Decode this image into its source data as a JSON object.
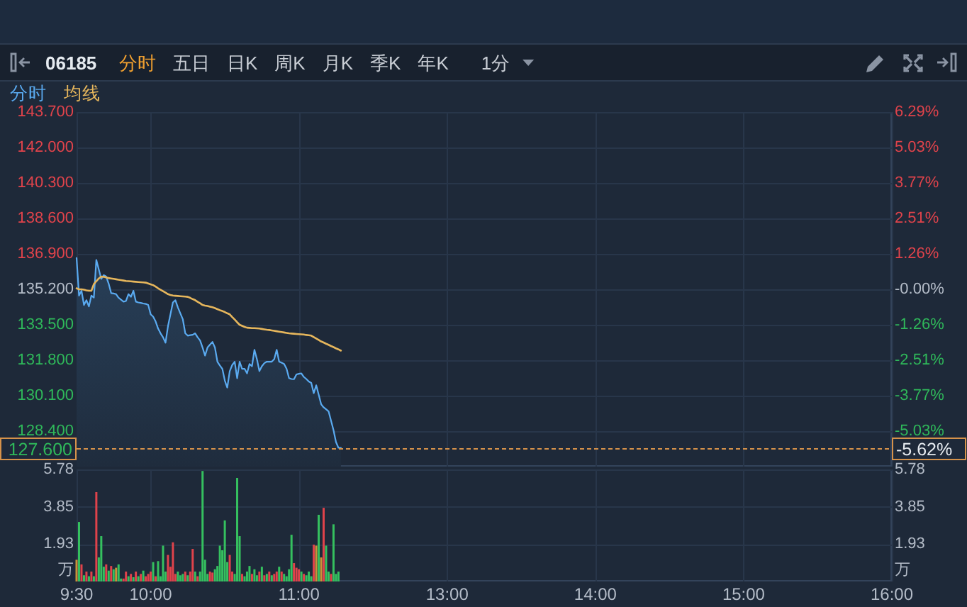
{
  "chart_data": [
    {
      "type": "line",
      "title": "06185",
      "annotations": [
        "分时",
        "五日",
        "日K",
        "周K",
        "月K",
        "季K",
        "年K",
        "1分",
        "-5.62%"
      ],
      "categories": [
        null,
        null,
        null,
        null,
        null,
        null,
        null,
        null,
        null,
        null,
        null,
        null,
        null,
        null,
        null,
        null,
        null,
        null,
        null,
        null,
        null,
        null,
        null,
        null,
        null,
        null,
        null,
        null,
        null,
        null,
        null,
        null,
        null,
        null,
        null,
        null,
        null,
        null,
        null,
        null,
        null,
        null,
        null,
        null,
        null,
        null,
        null,
        null,
        null,
        null,
        null,
        null,
        null,
        null,
        null,
        null,
        null,
        null,
        null,
        null,
        null,
        null,
        null,
        null,
        null,
        null,
        null,
        null,
        null,
        null,
        null,
        null,
        null,
        null,
        null,
        null,
        null,
        null,
        null,
        null,
        null,
        null,
        null,
        null,
        null,
        null,
        null,
        null,
        null,
        null,
        null,
        null,
        null,
        null,
        null,
        null,
        null,
        null,
        null,
        null,
        null,
        null,
        null,
        null,
        null,
        null,
        null,
        null,
        null,
        null,
        null,
        null,
        null,
        null,
        null,
        null,
        null,
        null,
        null,
        null,
        null,
        null,
        null,
        null,
        null,
        null,
        null,
        null,
        null,
        null,
        null,
        null,
        null,
        null,
        null,
        null,
        null,
        null,
        null,
        null,
        null,
        null,
        null,
        null,
        null,
        null,
        null,
        null,
        null,
        null,
        null,
        null,
        null,
        null,
        null,
        null,
        null,
        null,
        null,
        null,
        null,
        null,
        null,
        null,
        null,
        null,
        null,
        null,
        null,
        null,
        null,
        null,
        null,
        null,
        null,
        null,
        null,
        null,
        null,
        null,
        null,
        null,
        null,
        null,
        null,
        null,
        null,
        null,
        null,
        null,
        null,
        null,
        null,
        null,
        null,
        null,
        null,
        null,
        null,
        null,
        null,
        null,
        null,
        null,
        null,
        null,
        null,
        null,
        null,
        null,
        null,
        null,
        null,
        null,
        null,
        null,
        null,
        null,
        null,
        null,
        null,
        null,
        null,
        null,
        null,
        null,
        null,
        null,
        null,
        null,
        null,
        null,
        null,
        null,
        null,
        null,
        null,
        null,
        null,
        null,
        null,
        null,
        null,
        null,
        null,
        null,
        null,
        null,
        null,
        null,
        null,
        null,
        null,
        null,
        null,
        null,
        null,
        null,
        null,
        null,
        null,
        null,
        null,
        null,
        null,
        null,
        null,
        null,
        null,
        null,
        null,
        null,
        null,
        null,
        null,
        null,
        null,
        null,
        null,
        null,
        null,
        null,
        null,
        null,
        null,
        null,
        null,
        null,
        null,
        null,
        null,
        null,
        null,
        null,
        null,
        null,
        null,
        null,
        null,
        null,
        null,
        null,
        null,
        null,
        null,
        null,
        null,
        null,
        null,
        null,
        null,
        null,
        null,
        null,
        null,
        null,
        null,
        null,
        null,
        null,
        null,
        null,
        null,
        null,
        null,
        null,
        null,
        null,
        null,
        null,
        null
      ],
      "series": [
        {
          "name": "分时",
          "type": "area",
          "color": "#5aaaf0",
          "values": [
            136.7,
            134.9,
            135.13,
            134.45,
            134.68,
            134.38,
            134.9,
            134.8,
            136.61,
            136.15,
            135.7,
            135.88,
            135.81,
            135.47,
            135.02,
            135.0,
            134.97,
            134.8,
            134.7,
            134.61,
            134.64,
            134.97,
            134.84,
            135.13,
            134.61,
            134.57,
            134.55,
            134.52,
            134.5,
            134.45,
            134.0,
            133.89,
            133.66,
            133.32,
            133.09,
            132.9,
            132.64,
            133.43,
            134.0,
            134.57,
            134.68,
            134.34,
            134.05,
            133.77,
            133.09,
            132.98,
            133.0,
            133.02,
            133.09,
            132.9,
            132.75,
            132.41,
            132.02,
            132.41,
            132.55,
            132.68,
            132.41,
            131.73,
            131.55,
            131.39,
            130.83,
            130.49,
            131.28,
            131.57,
            131.73,
            130.94,
            131.73,
            131.39,
            131.39,
            131.17,
            131.62,
            131.51,
            132.3,
            131.85,
            131.28,
            131.51,
            131.66,
            131.73,
            131.73,
            131.73,
            131.85,
            132.3,
            131.73,
            131.68,
            131.62,
            131.39,
            130.94,
            130.9,
            130.89,
            131.12,
            131.15,
            131.17,
            131.0,
            130.9,
            130.78,
            130.71,
            130.22,
            130.6,
            130.15,
            129.69,
            129.54,
            129.45,
            129.35,
            128.9,
            128.45,
            127.88,
            127.6,
            127.6,
            null,
            null,
            null,
            null,
            null,
            null,
            null,
            null,
            null,
            null,
            null,
            null,
            null,
            null,
            null,
            null,
            null,
            null,
            null,
            null,
            null,
            null,
            null,
            null,
            null,
            null,
            null,
            null,
            null,
            null,
            null,
            null,
            null,
            null,
            null,
            null,
            null,
            null,
            null,
            null,
            null,
            null,
            null,
            null,
            null,
            null,
            null,
            null,
            null,
            null,
            null,
            null,
            null,
            null,
            null,
            null,
            null,
            null,
            null,
            null,
            null,
            null,
            null,
            null,
            null,
            null,
            null,
            null,
            null,
            null,
            null,
            null,
            null,
            null,
            null,
            null,
            null,
            null,
            null,
            null,
            null,
            null,
            null,
            null,
            null,
            null,
            null,
            null,
            null,
            null,
            null,
            null,
            null,
            null,
            null,
            null,
            null,
            null,
            null,
            null,
            null,
            null,
            null,
            null,
            null,
            null,
            null,
            null,
            null,
            null,
            null,
            null,
            null,
            null,
            null,
            null,
            null,
            null,
            null,
            null,
            null,
            null,
            null,
            null,
            null,
            null,
            null,
            null,
            null,
            null,
            null,
            null,
            null,
            null,
            null,
            null,
            null,
            null,
            null,
            null,
            null,
            null,
            null,
            null,
            null,
            null,
            null,
            null,
            null,
            null,
            null,
            null,
            null,
            null,
            null,
            null,
            null,
            null,
            null,
            null,
            null,
            null,
            null,
            null,
            null,
            null,
            null,
            null,
            null,
            null,
            null,
            null,
            null,
            null,
            null,
            null,
            null,
            null,
            null,
            null,
            null,
            null,
            null,
            null,
            null,
            null,
            null,
            null,
            null,
            null,
            null,
            null,
            null,
            null,
            null,
            null,
            null,
            null,
            null,
            null,
            null,
            null,
            null,
            null,
            null,
            null,
            null,
            null,
            null,
            null,
            null,
            null,
            null,
            null,
            null,
            null,
            null,
            null,
            null,
            null,
            null,
            null,
            null
          ]
        },
        {
          "name": "均线",
          "type": "line",
          "color": "#e6b65c",
          "values": [
            135.25,
            135.2,
            135.2,
            135.18,
            135.15,
            135.13,
            135.13,
            135.45,
            135.59,
            135.72,
            135.81,
            135.8,
            135.77,
            135.74,
            135.72,
            135.7,
            135.68,
            135.66,
            135.64,
            135.62,
            135.6,
            135.59,
            135.58,
            135.57,
            135.56,
            135.55,
            135.54,
            135.53,
            135.52,
            135.48,
            135.44,
            135.4,
            135.33,
            135.25,
            135.18,
            135.11,
            135.04,
            134.97,
            134.93,
            134.9,
            134.89,
            134.88,
            134.87,
            134.86,
            134.85,
            134.84,
            134.79,
            134.73,
            134.68,
            134.6,
            134.53,
            134.45,
            134.42,
            134.4,
            134.37,
            134.34,
            134.3,
            134.25,
            134.2,
            134.16,
            134.11,
            134.05,
            134.0,
            133.87,
            133.75,
            133.62,
            133.5,
            133.45,
            133.4,
            133.36,
            133.35,
            133.34,
            133.34,
            133.33,
            133.32,
            133.3,
            133.28,
            133.26,
            133.25,
            133.23,
            133.21,
            133.19,
            133.17,
            133.15,
            133.13,
            133.11,
            133.09,
            133.08,
            133.07,
            133.06,
            133.05,
            133.04,
            133.03,
            133.01,
            133.0,
            132.98,
            132.91,
            132.84,
            132.77,
            132.7,
            132.65,
            132.59,
            132.54,
            132.48,
            132.43,
            132.37,
            132.32,
            132.26,
            null,
            null,
            null,
            null,
            null,
            null,
            null,
            null,
            null,
            null,
            null,
            null,
            null,
            null,
            null,
            null,
            null,
            null,
            null,
            null,
            null,
            null,
            null,
            null,
            null,
            null,
            null,
            null,
            null,
            null,
            null,
            null,
            null,
            null,
            null,
            null,
            null,
            null,
            null,
            null,
            null,
            null,
            null,
            null,
            null,
            null,
            null,
            null,
            null,
            null,
            null,
            null,
            null,
            null,
            null,
            null,
            null,
            null,
            null,
            null,
            null,
            null,
            null,
            null,
            null,
            null,
            null,
            null,
            null,
            null,
            null,
            null,
            null,
            null,
            null,
            null,
            null,
            null,
            null,
            null,
            null,
            null,
            null,
            null,
            null,
            null,
            null,
            null,
            null,
            null,
            null,
            null,
            null,
            null,
            null,
            null,
            null,
            null,
            null,
            null,
            null,
            null,
            null,
            null,
            null,
            null,
            null,
            null,
            null,
            null,
            null,
            null,
            null,
            null,
            null,
            null,
            null,
            null,
            null,
            null,
            null,
            null,
            null,
            null,
            null,
            null,
            null,
            null,
            null,
            null,
            null,
            null,
            null,
            null,
            null,
            null,
            null,
            null,
            null,
            null,
            null,
            null,
            null,
            null,
            null,
            null,
            null,
            null,
            null,
            null,
            null,
            null,
            null,
            null,
            null,
            null,
            null,
            null,
            null,
            null,
            null,
            null,
            null,
            null,
            null,
            null,
            null,
            null,
            null,
            null,
            null,
            null,
            null,
            null,
            null,
            null,
            null,
            null,
            null,
            null,
            null,
            null,
            null,
            null,
            null,
            null,
            null,
            null,
            null,
            null,
            null,
            null,
            null,
            null,
            null,
            null,
            null,
            null,
            null,
            null,
            null,
            null,
            null,
            null,
            null,
            null,
            null,
            null,
            null,
            null,
            null,
            null,
            null,
            null,
            null,
            null,
            null,
            null,
            null,
            null,
            null,
            null,
            null
          ]
        }
      ],
      "ylim": [
        126.7,
        143.7
      ],
      "yticks": [
        {
          "value": 128.4,
          "label": "128.400"
        },
        {
          "value": 130.1,
          "label": "130.100"
        },
        {
          "value": 131.8,
          "label": "131.800"
        },
        {
          "value": 133.5,
          "label": "133.500"
        },
        {
          "value": 135.2,
          "label": "135.200"
        },
        {
          "value": 136.9,
          "label": "136.900"
        },
        {
          "value": 138.6,
          "label": "138.600"
        },
        {
          "value": 140.3,
          "label": "140.300"
        },
        {
          "value": 142.0,
          "label": "142.000"
        },
        {
          "value": 143.7,
          "label": "143.700"
        }
      ],
      "y2lim": [
        -6.29,
        6.29
      ],
      "y2ticks": [
        {
          "value": -5.03,
          "label": "-5.03%"
        },
        {
          "value": -3.77,
          "label": "-3.77%"
        },
        {
          "value": -2.51,
          "label": "-2.51%"
        },
        {
          "value": -1.26,
          "label": "-1.26%"
        },
        {
          "value": 0,
          "label": "-0.00%"
        },
        {
          "value": 1.26,
          "label": "1.26%"
        },
        {
          "value": 2.51,
          "label": "2.51%"
        },
        {
          "value": 3.77,
          "label": "3.77%"
        },
        {
          "value": 5.03,
          "label": "5.03%"
        },
        {
          "value": 6.29,
          "label": "6.29%"
        }
      ],
      "ref_lines": [
        {
          "axis": "y",
          "value": 127.6,
          "label": "127.600",
          "color": "#d6924a",
          "line_style": "dashed"
        }
      ],
      "grid": true,
      "legend": "top left",
      "tick_labels": "y"
    },
    {
      "type": "bar",
      "categories": [
        "9:30",
        null,
        null,
        null,
        null,
        null,
        null,
        null,
        null,
        null,
        null,
        null,
        null,
        null,
        null,
        null,
        null,
        null,
        null,
        null,
        null,
        null,
        null,
        null,
        null,
        null,
        null,
        null,
        null,
        null,
        "10:00",
        null,
        null,
        null,
        null,
        null,
        null,
        null,
        null,
        null,
        null,
        null,
        null,
        null,
        null,
        null,
        null,
        null,
        null,
        null,
        null,
        null,
        null,
        null,
        null,
        null,
        null,
        null,
        null,
        null,
        null,
        null,
        null,
        null,
        null,
        null,
        null,
        null,
        null,
        null,
        null,
        null,
        null,
        null,
        null,
        null,
        null,
        null,
        null,
        null,
        null,
        null,
        null,
        null,
        null,
        null,
        null,
        null,
        null,
        null,
        "11:00",
        null,
        null,
        null,
        null,
        null,
        null,
        null,
        null,
        null,
        null,
        null,
        null,
        null,
        null,
        null,
        null,
        null,
        null,
        null,
        null,
        null,
        null,
        null,
        null,
        null,
        null,
        null,
        null,
        null,
        null,
        null,
        null,
        null,
        null,
        null,
        null,
        null,
        null,
        null,
        null,
        null,
        null,
        null,
        null,
        null,
        null,
        null,
        null,
        null,
        null,
        null,
        null,
        null,
        null,
        null,
        null,
        null,
        null,
        null,
        "13:00",
        null,
        null,
        null,
        null,
        null,
        null,
        null,
        null,
        null,
        null,
        null,
        null,
        null,
        null,
        null,
        null,
        null,
        null,
        null,
        null,
        null,
        null,
        null,
        null,
        null,
        null,
        null,
        null,
        null,
        null,
        null,
        null,
        null,
        null,
        null,
        null,
        null,
        null,
        null,
        null,
        null,
        null,
        null,
        null,
        null,
        null,
        null,
        null,
        null,
        null,
        null,
        null,
        null,
        null,
        null,
        null,
        null,
        null,
        null,
        "14:00",
        null,
        null,
        null,
        null,
        null,
        null,
        null,
        null,
        null,
        null,
        null,
        null,
        null,
        null,
        null,
        null,
        null,
        null,
        null,
        null,
        null,
        null,
        null,
        null,
        null,
        null,
        null,
        null,
        null,
        null,
        null,
        null,
        null,
        null,
        null,
        null,
        null,
        null,
        null,
        null,
        null,
        null,
        null,
        null,
        null,
        null,
        null,
        null,
        null,
        null,
        null,
        null,
        null,
        null,
        null,
        null,
        null,
        null,
        null,
        "15:00",
        null,
        null,
        null,
        null,
        null,
        null,
        null,
        null,
        null,
        null,
        null,
        null,
        null,
        null,
        null,
        null,
        null,
        null,
        null,
        null,
        null,
        null,
        null,
        null,
        null,
        null,
        null,
        null,
        null,
        null,
        null,
        null,
        null,
        null,
        null,
        null,
        null,
        null,
        null,
        null,
        null,
        null,
        null,
        null,
        null,
        null,
        null,
        null,
        null,
        null,
        null,
        null,
        null,
        null,
        null,
        null,
        null,
        null,
        null,
        "16:00"
      ],
      "values": [
        1.12,
        3.07,
        0.88,
        0.32,
        0.51,
        0.27,
        0.51,
        0.27,
        4.61,
        1.24,
        2.34,
        0.76,
        0.88,
        0.56,
        0.8,
        0.63,
        0.71,
        0.88,
        0.15,
        0.15,
        0.51,
        0.27,
        0.39,
        0.22,
        0.51,
        0.27,
        0.39,
        0.56,
        0.27,
        0.39,
        0.51,
        1.0,
        0.27,
        1.05,
        0.27,
        1.85,
        0.51,
        1.37,
        0.76,
        2.02,
        0.39,
        0.51,
        0.32,
        0.39,
        0.51,
        0.32,
        0.51,
        1.68,
        0.51,
        0.27,
        0.51,
        5.7,
        1.12,
        0.39,
        0.51,
        0.46,
        0.63,
        0.8,
        1.85,
        1.61,
        3.15,
        1.0,
        1.37,
        0.51,
        0.39,
        5.34,
        2.34,
        0.39,
        0.27,
        0.51,
        0.8,
        0.39,
        0.63,
        0.32,
        0.51,
        0.76,
        0.32,
        0.39,
        0.51,
        0.32,
        0.39,
        0.51,
        0.76,
        0.51,
        0.39,
        0.27,
        0.63,
        2.41,
        0.95,
        0.71,
        0.63,
        0.51,
        0.39,
        0.32,
        0.51,
        0.27,
        1.9,
        1.85,
        3.44,
        1.24,
        3.8,
        1.85,
        0.51,
        0.39,
        2.95,
        0.39,
        0.51,
        null,
        null,
        null,
        null,
        null,
        null,
        null,
        null,
        null,
        null,
        null,
        null,
        null,
        null,
        null,
        null,
        null,
        null,
        null,
        null,
        null,
        null,
        null,
        null,
        null,
        null,
        null,
        null,
        null,
        null,
        null,
        null,
        null,
        null,
        null,
        null,
        null,
        null,
        null,
        null,
        null,
        null,
        null,
        null,
        null,
        null,
        null,
        null,
        null,
        null,
        null,
        null,
        null,
        null,
        null,
        null,
        null,
        null,
        null,
        null,
        null,
        null,
        null,
        null,
        null,
        null,
        null,
        null,
        null,
        null,
        null,
        null,
        null,
        null,
        null,
        null,
        null,
        null,
        null,
        null,
        null,
        null,
        null,
        null,
        null,
        null,
        null,
        null,
        null,
        null,
        null,
        null,
        null,
        null,
        null,
        null,
        null,
        null,
        null,
        null,
        null,
        null,
        null,
        null,
        null,
        null,
        null,
        null,
        null,
        null,
        null,
        null,
        null,
        null,
        null,
        null,
        null,
        null,
        null,
        null,
        null,
        null,
        null,
        null,
        null,
        null,
        null,
        null,
        null,
        null,
        null,
        null,
        null,
        null,
        null,
        null,
        null,
        null,
        null,
        null,
        null,
        null,
        null,
        null,
        null,
        null,
        null,
        null,
        null,
        null,
        null,
        null,
        null,
        null,
        null,
        null,
        null,
        null,
        null,
        null,
        null,
        null,
        null,
        null,
        null,
        null,
        null,
        null,
        null,
        null,
        null,
        null,
        null,
        null,
        null,
        null,
        null,
        null,
        null,
        null,
        null,
        null,
        null,
        null,
        null,
        null,
        null,
        null,
        null,
        null,
        null,
        null,
        null,
        null,
        null,
        null,
        null,
        null,
        null,
        null,
        null,
        null,
        null,
        null,
        null,
        null,
        null,
        null,
        null,
        null,
        null,
        null,
        null,
        null,
        null,
        null,
        null,
        null,
        null,
        null,
        null,
        null,
        null,
        null
      ],
      "colors": [
        "#c9923a",
        "#35c05f",
        "#e0434b",
        "#35c05f",
        "#e0434b",
        "#35c05f",
        "#e0434b",
        "#35c05f",
        "#e0434b",
        "#35c05f",
        "#35c05f",
        "#35c05f",
        "#e0434b",
        "#35c05f",
        "#e0434b",
        "#35c05f",
        "#c9923a",
        "#35c05f",
        "#35c05f",
        "#e0434b",
        "#e0434b",
        "#35c05f",
        "#e0434b",
        "#35c05f",
        "#e0434b",
        "#35c05f",
        "#e0434b",
        "#35c05f",
        "#e0434b",
        "#e0434b",
        "#e0434b",
        "#35c05f",
        "#e0434b",
        "#35c05f",
        "#35c05f",
        "#35c05f",
        "#35c05f",
        "#e0434b",
        "#e0434b",
        "#e0434b",
        "#e0434b",
        "#35c05f",
        "#35c05f",
        "#35c05f",
        "#e0434b",
        "#35c05f",
        "#e0434b",
        "#e0434b",
        "#35c05f",
        "#e0434b",
        "#35c05f",
        "#35c05f",
        "#35c05f",
        "#35c05f",
        "#e0434b",
        "#e0434b",
        "#35c05f",
        "#35c05f",
        "#35c05f",
        "#35c05f",
        "#35c05f",
        "#35c05f",
        "#e0434b",
        "#e0434b",
        "#35c05f",
        "#35c05f",
        "#35c05f",
        "#e0434b",
        "#35c05f",
        "#35c05f",
        "#35c05f",
        "#e0434b",
        "#35c05f",
        "#35c05f",
        "#e0434b",
        "#35c05f",
        "#e0434b",
        "#35c05f",
        "#e0434b",
        "#35c05f",
        "#e0434b",
        "#e0434b",
        "#35c05f",
        "#e0434b",
        "#35c05f",
        "#35c05f",
        "#35c05f",
        "#35c05f",
        "#e0434b",
        "#e0434b",
        "#e0434b",
        "#35c05f",
        "#e0434b",
        "#35c05f",
        "#35c05f",
        "#35c05f",
        "#e0434b",
        "#c9923a",
        "#35c05f",
        "#c9923a",
        "#e0434b",
        "#35c05f",
        "#35c05f",
        "#e0434b",
        "#35c05f",
        "#35c05f",
        "#35c05f",
        null,
        null,
        null,
        null,
        null,
        null,
        null,
        null,
        null,
        null,
        null,
        null,
        null,
        null,
        null,
        null,
        null,
        null,
        null,
        null,
        null,
        null,
        null,
        null,
        null,
        null,
        null,
        null,
        null,
        null,
        null,
        null,
        null,
        null,
        null,
        null,
        null,
        null,
        null,
        null,
        null,
        null,
        null,
        null,
        null,
        null,
        null,
        null,
        null,
        null,
        null,
        null,
        null,
        null,
        null,
        null,
        null,
        null,
        null,
        null,
        null,
        null,
        null,
        null,
        null,
        null,
        null,
        null,
        null,
        null,
        null,
        null,
        null,
        null,
        null,
        null,
        null,
        null,
        null,
        null,
        null,
        null,
        null,
        null,
        null,
        null,
        null,
        null,
        null,
        null,
        null,
        null,
        null,
        null,
        null,
        null,
        null,
        null,
        null,
        null,
        null,
        null,
        null,
        null,
        null,
        null,
        null,
        null,
        null,
        null,
        null,
        null,
        null,
        null,
        null,
        null,
        null,
        null,
        null,
        null,
        null,
        null,
        null,
        null,
        null,
        null,
        null,
        null,
        null,
        null,
        null,
        null,
        null,
        null,
        null,
        null,
        null,
        null,
        null,
        null,
        null,
        null,
        null,
        null,
        null,
        null,
        null,
        null,
        null,
        null,
        null,
        null,
        null,
        null,
        null,
        null,
        null,
        null,
        null,
        null,
        null,
        null,
        null,
        null,
        null,
        null,
        null,
        null,
        null,
        null,
        null,
        null,
        null,
        null,
        null,
        null,
        null,
        null,
        null,
        null,
        null,
        null,
        null,
        null,
        null,
        null,
        null,
        null,
        null,
        null,
        null,
        null,
        null,
        null,
        null,
        null,
        null,
        null,
        null,
        null,
        null,
        null,
        null,
        null,
        null,
        null,
        null,
        null,
        null,
        null,
        null,
        null,
        null,
        null,
        null,
        null,
        null,
        null,
        null,
        null,
        null,
        null,
        null,
        null
      ],
      "ylim": [
        0,
        5.78
      ],
      "yticks": [
        1.93,
        3.85,
        5.78
      ],
      "y2lim": [
        0,
        5.78
      ],
      "y2ticks": [
        1.93,
        3.85,
        5.78
      ],
      "ylabel": "万",
      "y2label": "万",
      "grid": true
    }
  ]
}
